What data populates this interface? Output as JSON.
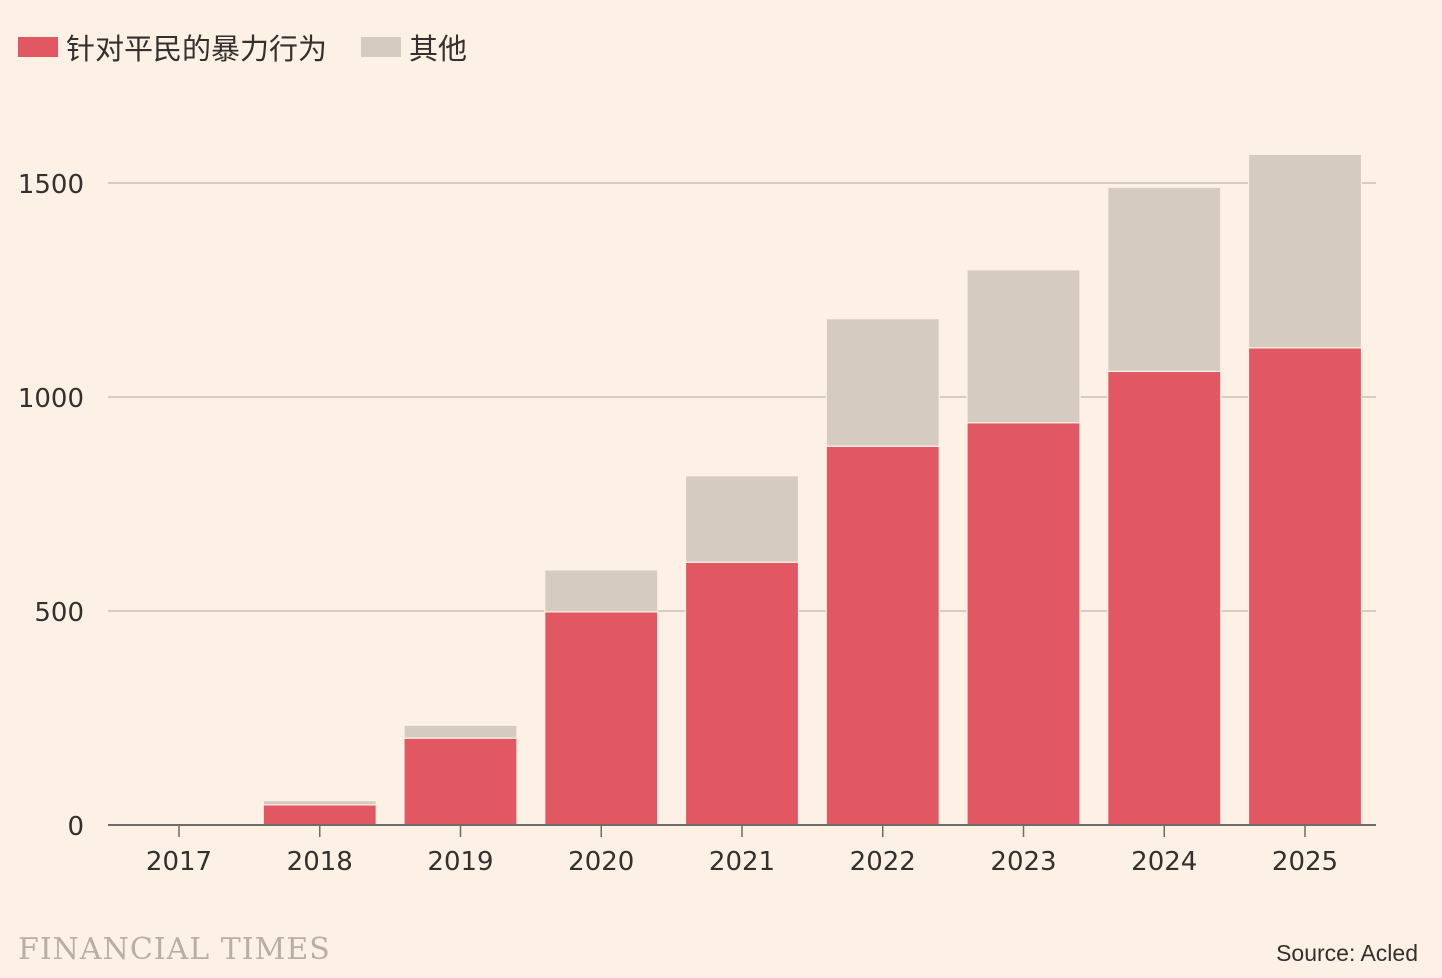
{
  "legend": {
    "series1_label": "针对平民的暴力行为",
    "series2_label": "其他"
  },
  "colors": {
    "civilian_violence": "#e15762",
    "other": "#d6cbc1",
    "background": "#fdf1e6",
    "gridline": "#c9bfb6",
    "axis": "#6f6b67",
    "text": "#33302e"
  },
  "chart_data": {
    "type": "bar",
    "stacked": true,
    "categories": [
      "2017",
      "2018",
      "2019",
      "2020",
      "2021",
      "2022",
      "2023",
      "2024",
      "2025"
    ],
    "series": [
      {
        "name": "针对平民的暴力行为",
        "values": [
          2,
          47,
          203,
          498,
          614,
          885,
          940,
          1060,
          1115
        ]
      },
      {
        "name": "其他",
        "values": [
          0,
          10,
          30,
          98,
          202,
          298,
          357,
          430,
          452
        ]
      }
    ],
    "ylim": [
      0,
      1600
    ],
    "yticks": [
      0,
      500,
      1000,
      1500
    ],
    "title": "",
    "xlabel": "",
    "ylabel": "",
    "grid": true,
    "legend_position": "top-left"
  },
  "footer": {
    "brand": "FINANCIAL TIMES",
    "source": "Source: Acled"
  }
}
